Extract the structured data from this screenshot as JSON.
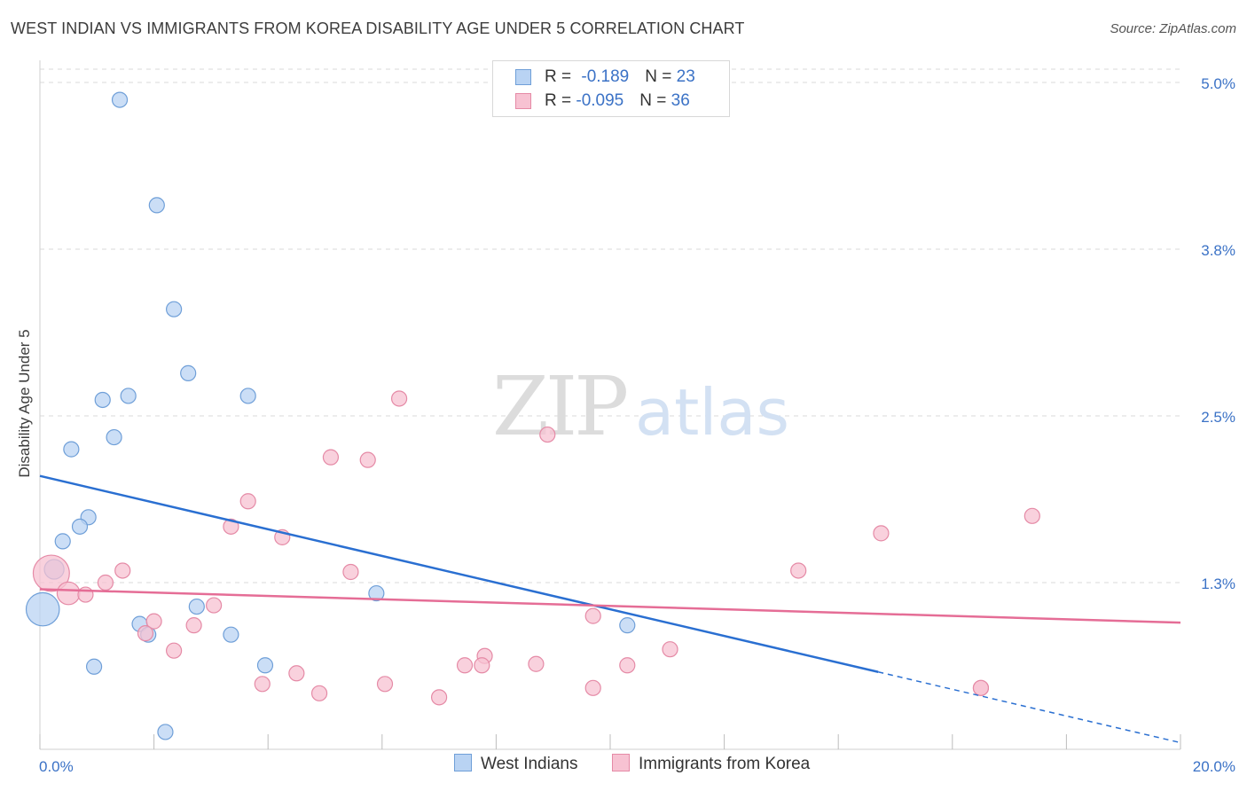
{
  "title": "WEST INDIAN VS IMMIGRANTS FROM KOREA DISABILITY AGE UNDER 5 CORRELATION CHART",
  "source": "Source: ZipAtlas.com",
  "watermark": {
    "zip": "ZIP",
    "atlas": "atlas"
  },
  "colors": {
    "blue_fill": "#b9d3f3",
    "blue_stroke": "#6f9fd8",
    "blue_line": "#2a6fd1",
    "pink_fill": "#f7c2d2",
    "pink_stroke": "#e58aa6",
    "pink_line": "#e56d96",
    "axis_text": "#3b72c6",
    "grid": "#d9d9d9"
  },
  "legend": {
    "rows": [
      {
        "r_label": "R = ",
        "r_value": "-0.189",
        "n_label": "N = ",
        "n_value": "23"
      },
      {
        "r_label": "R = ",
        "r_value": "-0.095",
        "n_label": "N = ",
        "n_value": "36"
      }
    ]
  },
  "bottom_legend": [
    "West Indians",
    "Immigrants from Korea"
  ],
  "chart_data": {
    "type": "scatter",
    "title": "WEST INDIAN VS IMMIGRANTS FROM KOREA DISABILITY AGE UNDER 5 CORRELATION CHART",
    "xlabel": "",
    "ylabel": "Disability Age Under 5",
    "xlim": [
      0,
      20
    ],
    "ylim": [
      0,
      5.1
    ],
    "x_tick_labels": [
      {
        "value": 0,
        "label": "0.0%"
      },
      {
        "value": 20,
        "label": "20.0%"
      }
    ],
    "y_ticks": [
      {
        "value": 1.25,
        "label": "1.3%"
      },
      {
        "value": 2.5,
        "label": "2.5%"
      },
      {
        "value": 3.75,
        "label": "3.8%"
      },
      {
        "value": 5.0,
        "label": "5.0%"
      }
    ],
    "x_minor_ticks": [
      0,
      2,
      4,
      6,
      8,
      10,
      12,
      14,
      16,
      18,
      20
    ],
    "grid": true,
    "legend_position": "top-center",
    "series": [
      {
        "name": "West Indians",
        "r": -0.189,
        "n": 23,
        "points": [
          {
            "x": 1.4,
            "y": 4.87,
            "s": 1
          },
          {
            "x": 2.05,
            "y": 4.08,
            "s": 1
          },
          {
            "x": 2.35,
            "y": 3.3,
            "s": 1
          },
          {
            "x": 2.6,
            "y": 2.82,
            "s": 1
          },
          {
            "x": 1.55,
            "y": 2.65,
            "s": 1
          },
          {
            "x": 3.65,
            "y": 2.65,
            "s": 1
          },
          {
            "x": 1.1,
            "y": 2.62,
            "s": 1
          },
          {
            "x": 1.3,
            "y": 2.34,
            "s": 1
          },
          {
            "x": 0.55,
            "y": 2.25,
            "s": 1
          },
          {
            "x": 0.85,
            "y": 1.74,
            "s": 1
          },
          {
            "x": 0.7,
            "y": 1.67,
            "s": 1
          },
          {
            "x": 0.4,
            "y": 1.56,
            "s": 1
          },
          {
            "x": 0.25,
            "y": 1.35,
            "s": 1.3
          },
          {
            "x": 0.05,
            "y": 1.05,
            "s": 2.2
          },
          {
            "x": 5.9,
            "y": 1.17,
            "s": 1
          },
          {
            "x": 2.75,
            "y": 1.07,
            "s": 1
          },
          {
            "x": 1.75,
            "y": 0.94,
            "s": 1
          },
          {
            "x": 1.9,
            "y": 0.86,
            "s": 1
          },
          {
            "x": 3.35,
            "y": 0.86,
            "s": 1
          },
          {
            "x": 10.3,
            "y": 0.93,
            "s": 1
          },
          {
            "x": 0.95,
            "y": 0.62,
            "s": 1
          },
          {
            "x": 3.95,
            "y": 0.63,
            "s": 1
          },
          {
            "x": 2.2,
            "y": 0.13,
            "s": 1
          }
        ],
        "trend": {
          "x1": 0,
          "y1": 2.05,
          "x2": 14.7,
          "y2": 0.58,
          "dash_x2": 20,
          "dash_y2": 0.05
        }
      },
      {
        "name": "Immigrants from Korea",
        "r": -0.095,
        "n": 36,
        "points": [
          {
            "x": 6.3,
            "y": 2.63,
            "s": 1
          },
          {
            "x": 8.9,
            "y": 2.36,
            "s": 1
          },
          {
            "x": 5.1,
            "y": 2.19,
            "s": 1
          },
          {
            "x": 5.75,
            "y": 2.17,
            "s": 1
          },
          {
            "x": 3.65,
            "y": 1.86,
            "s": 1
          },
          {
            "x": 3.35,
            "y": 1.67,
            "s": 1
          },
          {
            "x": 4.25,
            "y": 1.59,
            "s": 1
          },
          {
            "x": 14.75,
            "y": 1.62,
            "s": 1
          },
          {
            "x": 17.4,
            "y": 1.75,
            "s": 1
          },
          {
            "x": 0.2,
            "y": 1.32,
            "s": 2.4
          },
          {
            "x": 1.45,
            "y": 1.34,
            "s": 1
          },
          {
            "x": 5.45,
            "y": 1.33,
            "s": 1
          },
          {
            "x": 13.3,
            "y": 1.34,
            "s": 1
          },
          {
            "x": 1.15,
            "y": 1.25,
            "s": 1
          },
          {
            "x": 0.5,
            "y": 1.17,
            "s": 1.5
          },
          {
            "x": 0.8,
            "y": 1.16,
            "s": 1
          },
          {
            "x": 3.05,
            "y": 1.08,
            "s": 1
          },
          {
            "x": 9.7,
            "y": 1.0,
            "s": 1
          },
          {
            "x": 2.0,
            "y": 0.96,
            "s": 1
          },
          {
            "x": 2.7,
            "y": 0.93,
            "s": 1
          },
          {
            "x": 1.85,
            "y": 0.87,
            "s": 1
          },
          {
            "x": 2.35,
            "y": 0.74,
            "s": 1
          },
          {
            "x": 11.05,
            "y": 0.75,
            "s": 1
          },
          {
            "x": 7.8,
            "y": 0.7,
            "s": 1
          },
          {
            "x": 7.45,
            "y": 0.63,
            "s": 1
          },
          {
            "x": 7.75,
            "y": 0.63,
            "s": 1
          },
          {
            "x": 8.7,
            "y": 0.64,
            "s": 1
          },
          {
            "x": 10.3,
            "y": 0.63,
            "s": 1
          },
          {
            "x": 4.5,
            "y": 0.57,
            "s": 1
          },
          {
            "x": 3.9,
            "y": 0.49,
            "s": 1
          },
          {
            "x": 6.05,
            "y": 0.49,
            "s": 1
          },
          {
            "x": 4.9,
            "y": 0.42,
            "s": 1
          },
          {
            "x": 9.7,
            "y": 0.46,
            "s": 1
          },
          {
            "x": 7.0,
            "y": 0.39,
            "s": 1
          },
          {
            "x": 16.5,
            "y": 0.46,
            "s": 1
          },
          {
            "x": 16.5,
            "y": 0.46,
            "s": 1
          }
        ],
        "trend": {
          "x1": 0,
          "y1": 1.2,
          "x2": 20,
          "y2": 0.95
        }
      }
    ]
  }
}
